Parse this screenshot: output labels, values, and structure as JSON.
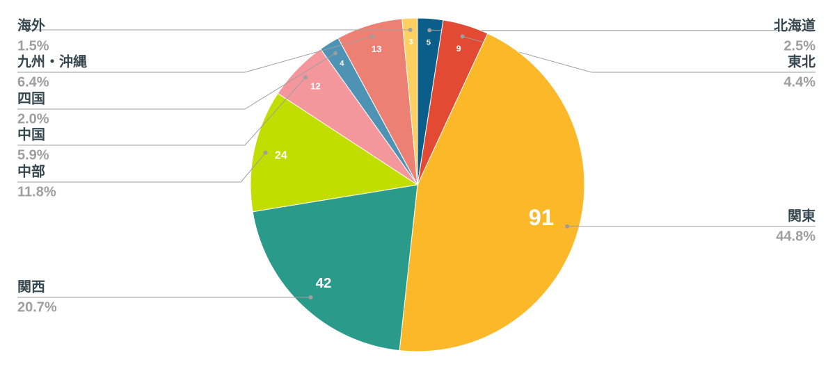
{
  "chart_data": {
    "type": "pie",
    "categories": [
      "北海道",
      "東北",
      "関東",
      "関西",
      "中部",
      "中国",
      "四国",
      "九州・沖縄",
      "海外"
    ],
    "values": [
      5,
      9,
      91,
      42,
      24,
      12,
      4,
      13,
      3
    ],
    "percent_labels": [
      "2.5%",
      "4.4%",
      "44.8%",
      "20.7%",
      "11.8%",
      "5.9%",
      "2.0%",
      "6.4%",
      "1.5%"
    ],
    "colors": [
      "#0b5e8a",
      "#e24a33",
      "#fbb829",
      "#2a9a8a",
      "#c2dd00",
      "#f4979c",
      "#4f93b4",
      "#ec8173",
      "#fdd061"
    ]
  }
}
